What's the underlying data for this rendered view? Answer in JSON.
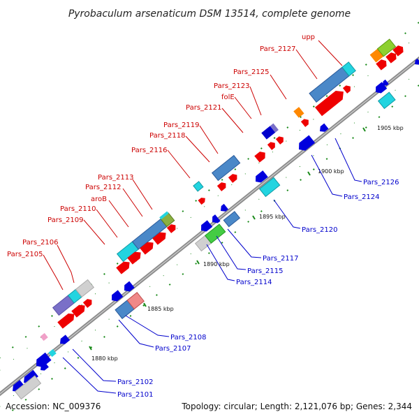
{
  "title": "Pyrobaculum arsenaticum DSM 13514, complete genome",
  "footer": {
    "accession": "Accession: NC_009376",
    "topology": "Topology: circular; Length: 2,121,076 bp; Genes: 2,344"
  },
  "ticks": [
    {
      "label": "1880 kbp"
    },
    {
      "label": "1885 kbp"
    },
    {
      "label": "1890 kbp"
    },
    {
      "label": "1895 kbp"
    },
    {
      "label": "1900 kbp"
    },
    {
      "label": "1905 kbp"
    }
  ],
  "forward_labels": [
    {
      "text": "Pars_2105"
    },
    {
      "text": "Pars_2106"
    },
    {
      "text": "Pars_2109"
    },
    {
      "text": "Pars_2110"
    },
    {
      "text": "aroB"
    },
    {
      "text": "Pars_2112"
    },
    {
      "text": "Pars_2113"
    },
    {
      "text": "Pars_2116"
    },
    {
      "text": "Pars_2118"
    },
    {
      "text": "Pars_2119"
    },
    {
      "text": "Pars_2121"
    },
    {
      "text": "folE"
    },
    {
      "text": "Pars_2123"
    },
    {
      "text": "Pars_2125"
    },
    {
      "text": "Pars_2127"
    },
    {
      "text": "upp"
    }
  ],
  "reverse_labels": [
    {
      "text": "Pars_2101"
    },
    {
      "text": "Pars_2102"
    },
    {
      "text": "Pars_2107"
    },
    {
      "text": "Pars_2108"
    },
    {
      "text": "Pars_2114"
    },
    {
      "text": "Pars_2115"
    },
    {
      "text": "Pars_2117"
    },
    {
      "text": "Pars_2120"
    },
    {
      "text": "Pars_2124"
    },
    {
      "text": "Pars_2126"
    }
  ],
  "colors": {
    "forward_gene": "#ee0000",
    "reverse_gene": "#0000dd",
    "forward_label": "#cc0000",
    "reverse_label": "#0000cc",
    "backbone": "#8c8c8c",
    "tick": "#1a8a1a"
  }
}
